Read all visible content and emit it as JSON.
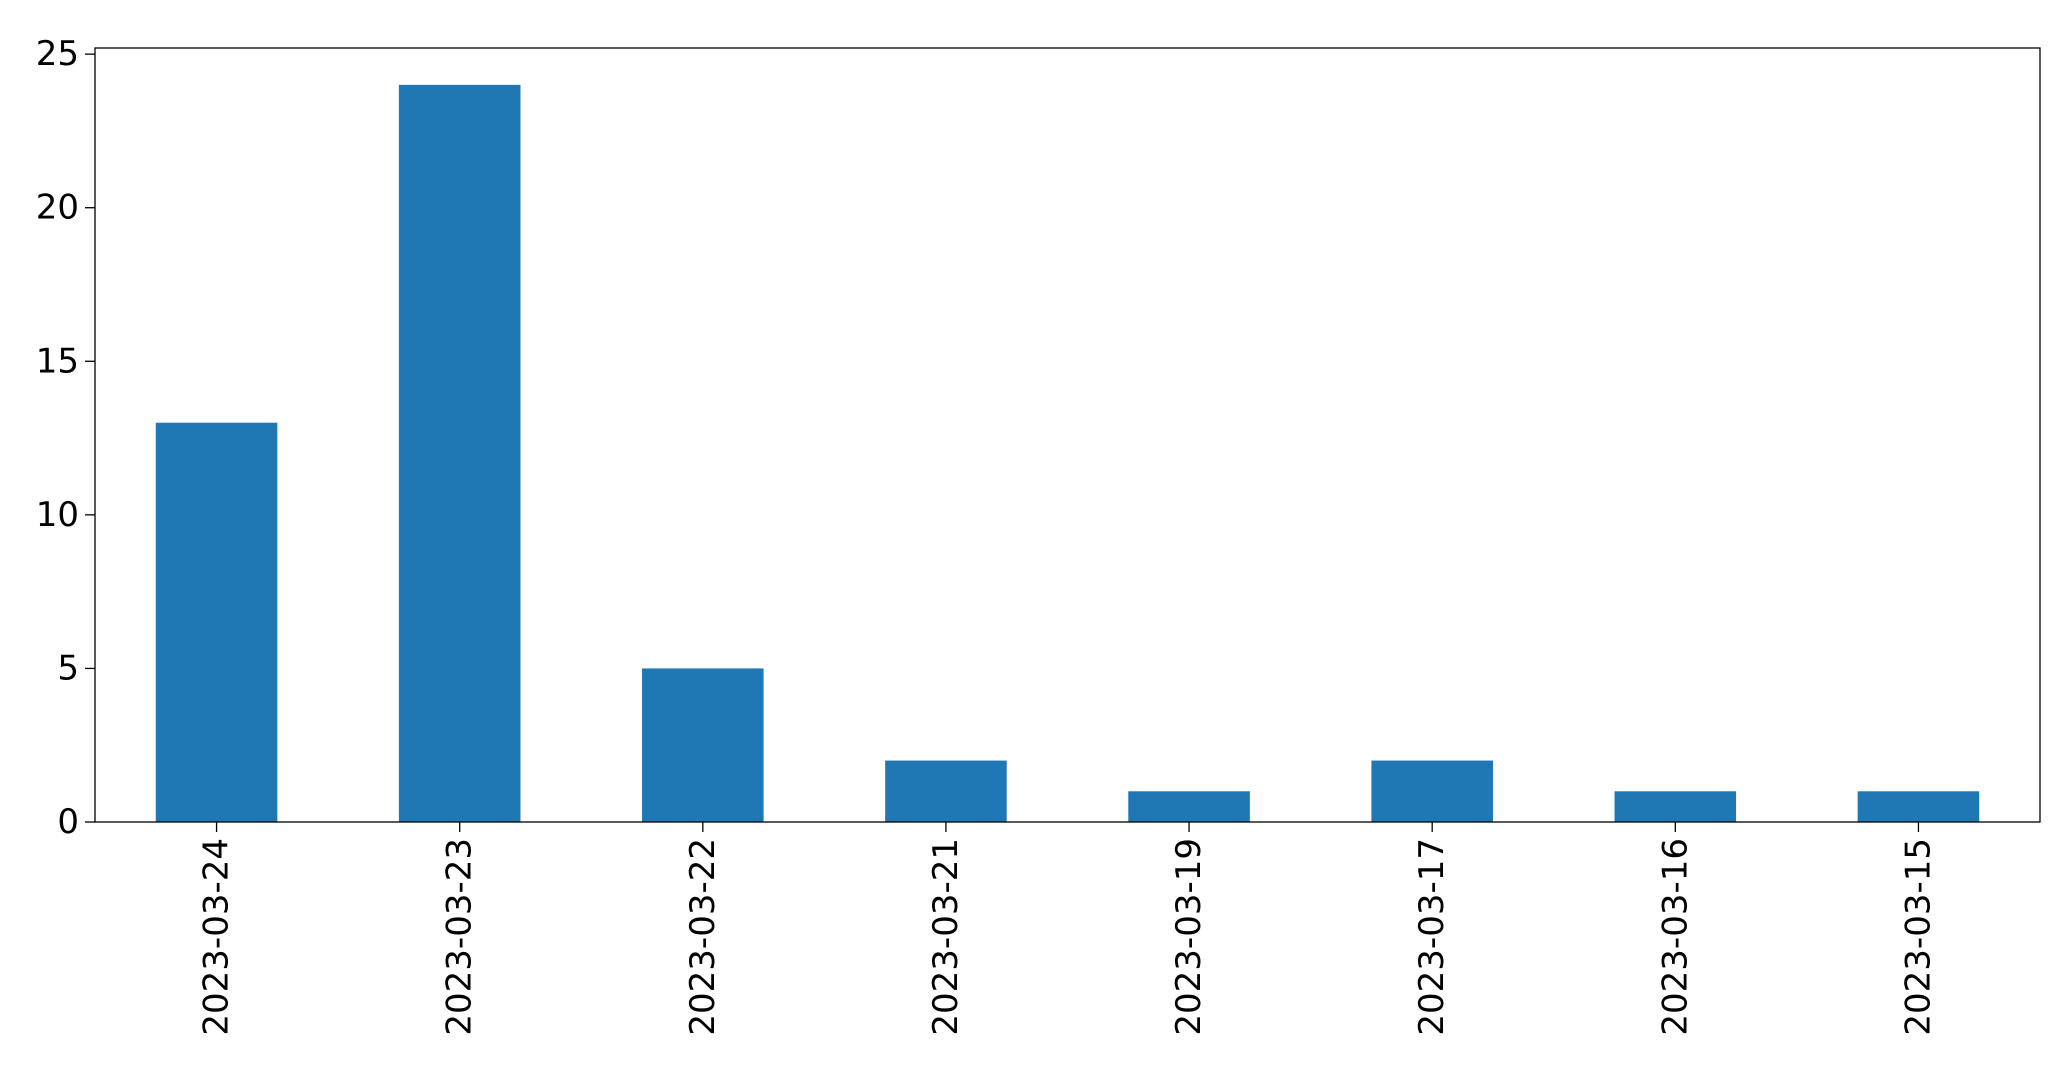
{
  "chart_data": {
    "type": "bar",
    "title": "",
    "xlabel": "",
    "ylabel": "",
    "categories": [
      "2023-03-24",
      "2023-03-23",
      "2023-03-22",
      "2023-03-21",
      "2023-03-19",
      "2023-03-17",
      "2023-03-16",
      "2023-03-15"
    ],
    "values": [
      13,
      24,
      5,
      2,
      1,
      2,
      1,
      1
    ],
    "ylim": [
      0,
      25.2
    ],
    "yticks": [
      "0",
      "5",
      "10",
      "15",
      "20",
      "25"
    ],
    "grid": false,
    "legend": "none",
    "bar_color": "#1f77b4"
  }
}
